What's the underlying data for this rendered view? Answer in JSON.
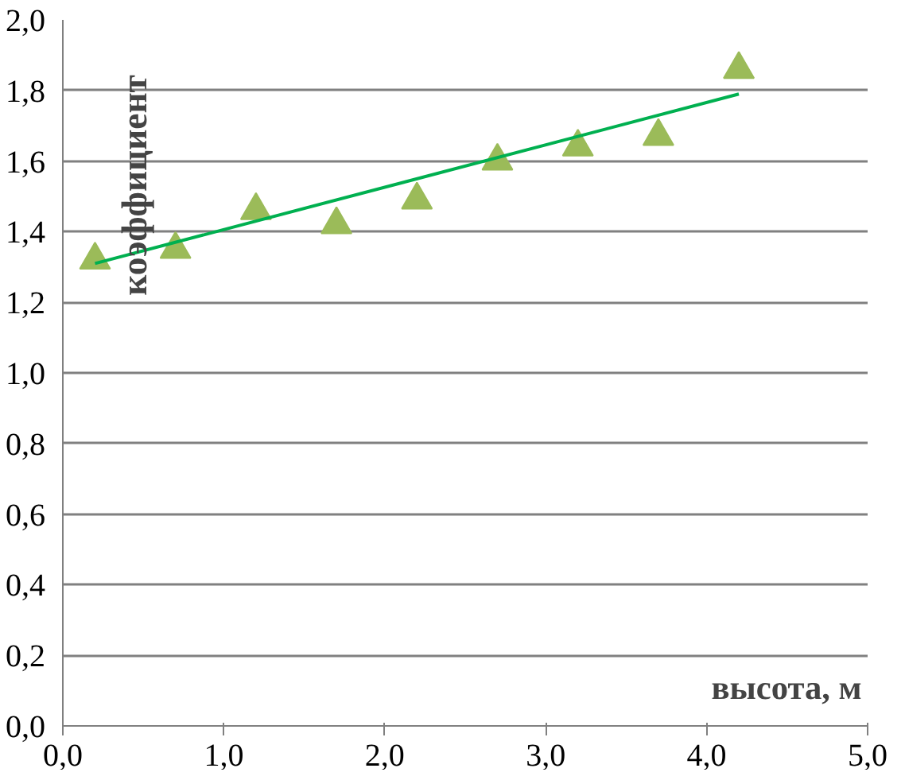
{
  "chart_data": {
    "type": "scatter",
    "xlabel": "высота, м",
    "ylabel": "коэффициент",
    "x": [
      0.2,
      0.7,
      1.2,
      1.7,
      2.2,
      2.7,
      3.2,
      3.7,
      4.2
    ],
    "series": [
      {
        "color": "#9bbb59",
        "marker": "triangle",
        "values": [
          1.32,
          1.35,
          1.46,
          1.42,
          1.49,
          1.6,
          1.64,
          1.67,
          1.86
        ]
      },
      {
        "type": "line",
        "color": "#00b050",
        "x": [
          0.2,
          4.2
        ],
        "values": [
          1.31,
          1.79
        ]
      }
    ],
    "xlim": [
      0,
      5
    ],
    "ylim": [
      0,
      2
    ],
    "xticks": [
      {
        "value": 0,
        "label": "0,0"
      },
      {
        "value": 1,
        "label": "1,0"
      },
      {
        "value": 2,
        "label": "2,0"
      },
      {
        "value": 3,
        "label": "3,0"
      },
      {
        "value": 4,
        "label": "4,0"
      },
      {
        "value": 5,
        "label": "5,0"
      }
    ],
    "yticks": [
      {
        "value": 0,
        "label": "0,0"
      },
      {
        "value": 0.2,
        "label": "0,2"
      },
      {
        "value": 0.4,
        "label": "0,4"
      },
      {
        "value": 0.6,
        "label": "0,6"
      },
      {
        "value": 0.8,
        "label": "0,8"
      },
      {
        "value": 1.0,
        "label": "1,0"
      },
      {
        "value": 1.2,
        "label": "1,2"
      },
      {
        "value": 1.4,
        "label": "1,4"
      },
      {
        "value": 1.6,
        "label": "1,6"
      },
      {
        "value": 1.8,
        "label": "1,8"
      },
      {
        "value": 2.0,
        "label": "2,0"
      }
    ],
    "grid": "y"
  }
}
